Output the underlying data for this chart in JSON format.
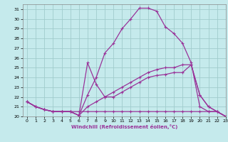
{
  "xlabel": "Windchill (Refroidissement éolien,°C)",
  "xlim": [
    -0.5,
    23
  ],
  "ylim": [
    20,
    31.5
  ],
  "yticks": [
    20,
    21,
    22,
    23,
    24,
    25,
    26,
    27,
    28,
    29,
    30,
    31
  ],
  "xticks": [
    0,
    1,
    2,
    3,
    4,
    5,
    6,
    7,
    8,
    9,
    10,
    11,
    12,
    13,
    14,
    15,
    16,
    17,
    18,
    19,
    20,
    21,
    22,
    23
  ],
  "background_color": "#c5eaec",
  "grid_color": "#a0cccc",
  "line_color": "#993399",
  "lines": [
    {
      "x": [
        0,
        1,
        2,
        3,
        4,
        5,
        6,
        7,
        8,
        9,
        10,
        11,
        12,
        13,
        14,
        15,
        16,
        17,
        18,
        19,
        20,
        21,
        22,
        23
      ],
      "y": [
        21.5,
        21.0,
        20.7,
        20.5,
        20.5,
        20.5,
        20.1,
        22.2,
        24.0,
        26.5,
        27.5,
        29.0,
        30.0,
        31.1,
        31.1,
        30.8,
        29.2,
        28.5,
        27.5,
        25.5,
        21.0,
        20.5,
        20.5,
        20.0
      ]
    },
    {
      "x": [
        0,
        1,
        2,
        3,
        4,
        5,
        6,
        7,
        8,
        9,
        10,
        11,
        12,
        13,
        14,
        15,
        16,
        17,
        18,
        19,
        20,
        21,
        22,
        23
      ],
      "y": [
        21.5,
        21.0,
        20.7,
        20.5,
        20.5,
        20.5,
        20.1,
        25.5,
        23.3,
        22.0,
        22.0,
        22.5,
        23.0,
        23.5,
        24.0,
        24.2,
        24.3,
        24.5,
        24.5,
        25.3,
        22.2,
        21.0,
        20.5,
        20.0
      ]
    },
    {
      "x": [
        0,
        1,
        2,
        3,
        4,
        5,
        6,
        7,
        8,
        9,
        10,
        11,
        12,
        13,
        14,
        15,
        16,
        17,
        18,
        19,
        20,
        21,
        22,
        23
      ],
      "y": [
        21.5,
        21.0,
        20.7,
        20.5,
        20.5,
        20.5,
        20.5,
        20.5,
        20.5,
        20.5,
        20.5,
        20.5,
        20.5,
        20.5,
        20.5,
        20.5,
        20.5,
        20.5,
        20.5,
        20.5,
        20.5,
        20.5,
        20.5,
        20.0
      ]
    },
    {
      "x": [
        0,
        1,
        2,
        3,
        4,
        5,
        6,
        7,
        8,
        9,
        10,
        11,
        12,
        13,
        14,
        15,
        16,
        17,
        18,
        19,
        20,
        21,
        22,
        23
      ],
      "y": [
        21.5,
        21.0,
        20.7,
        20.5,
        20.5,
        20.5,
        20.1,
        21.0,
        21.5,
        22.0,
        22.5,
        23.0,
        23.5,
        24.0,
        24.5,
        24.8,
        25.0,
        25.0,
        25.3,
        25.3,
        22.2,
        21.0,
        20.5,
        20.0
      ]
    }
  ]
}
